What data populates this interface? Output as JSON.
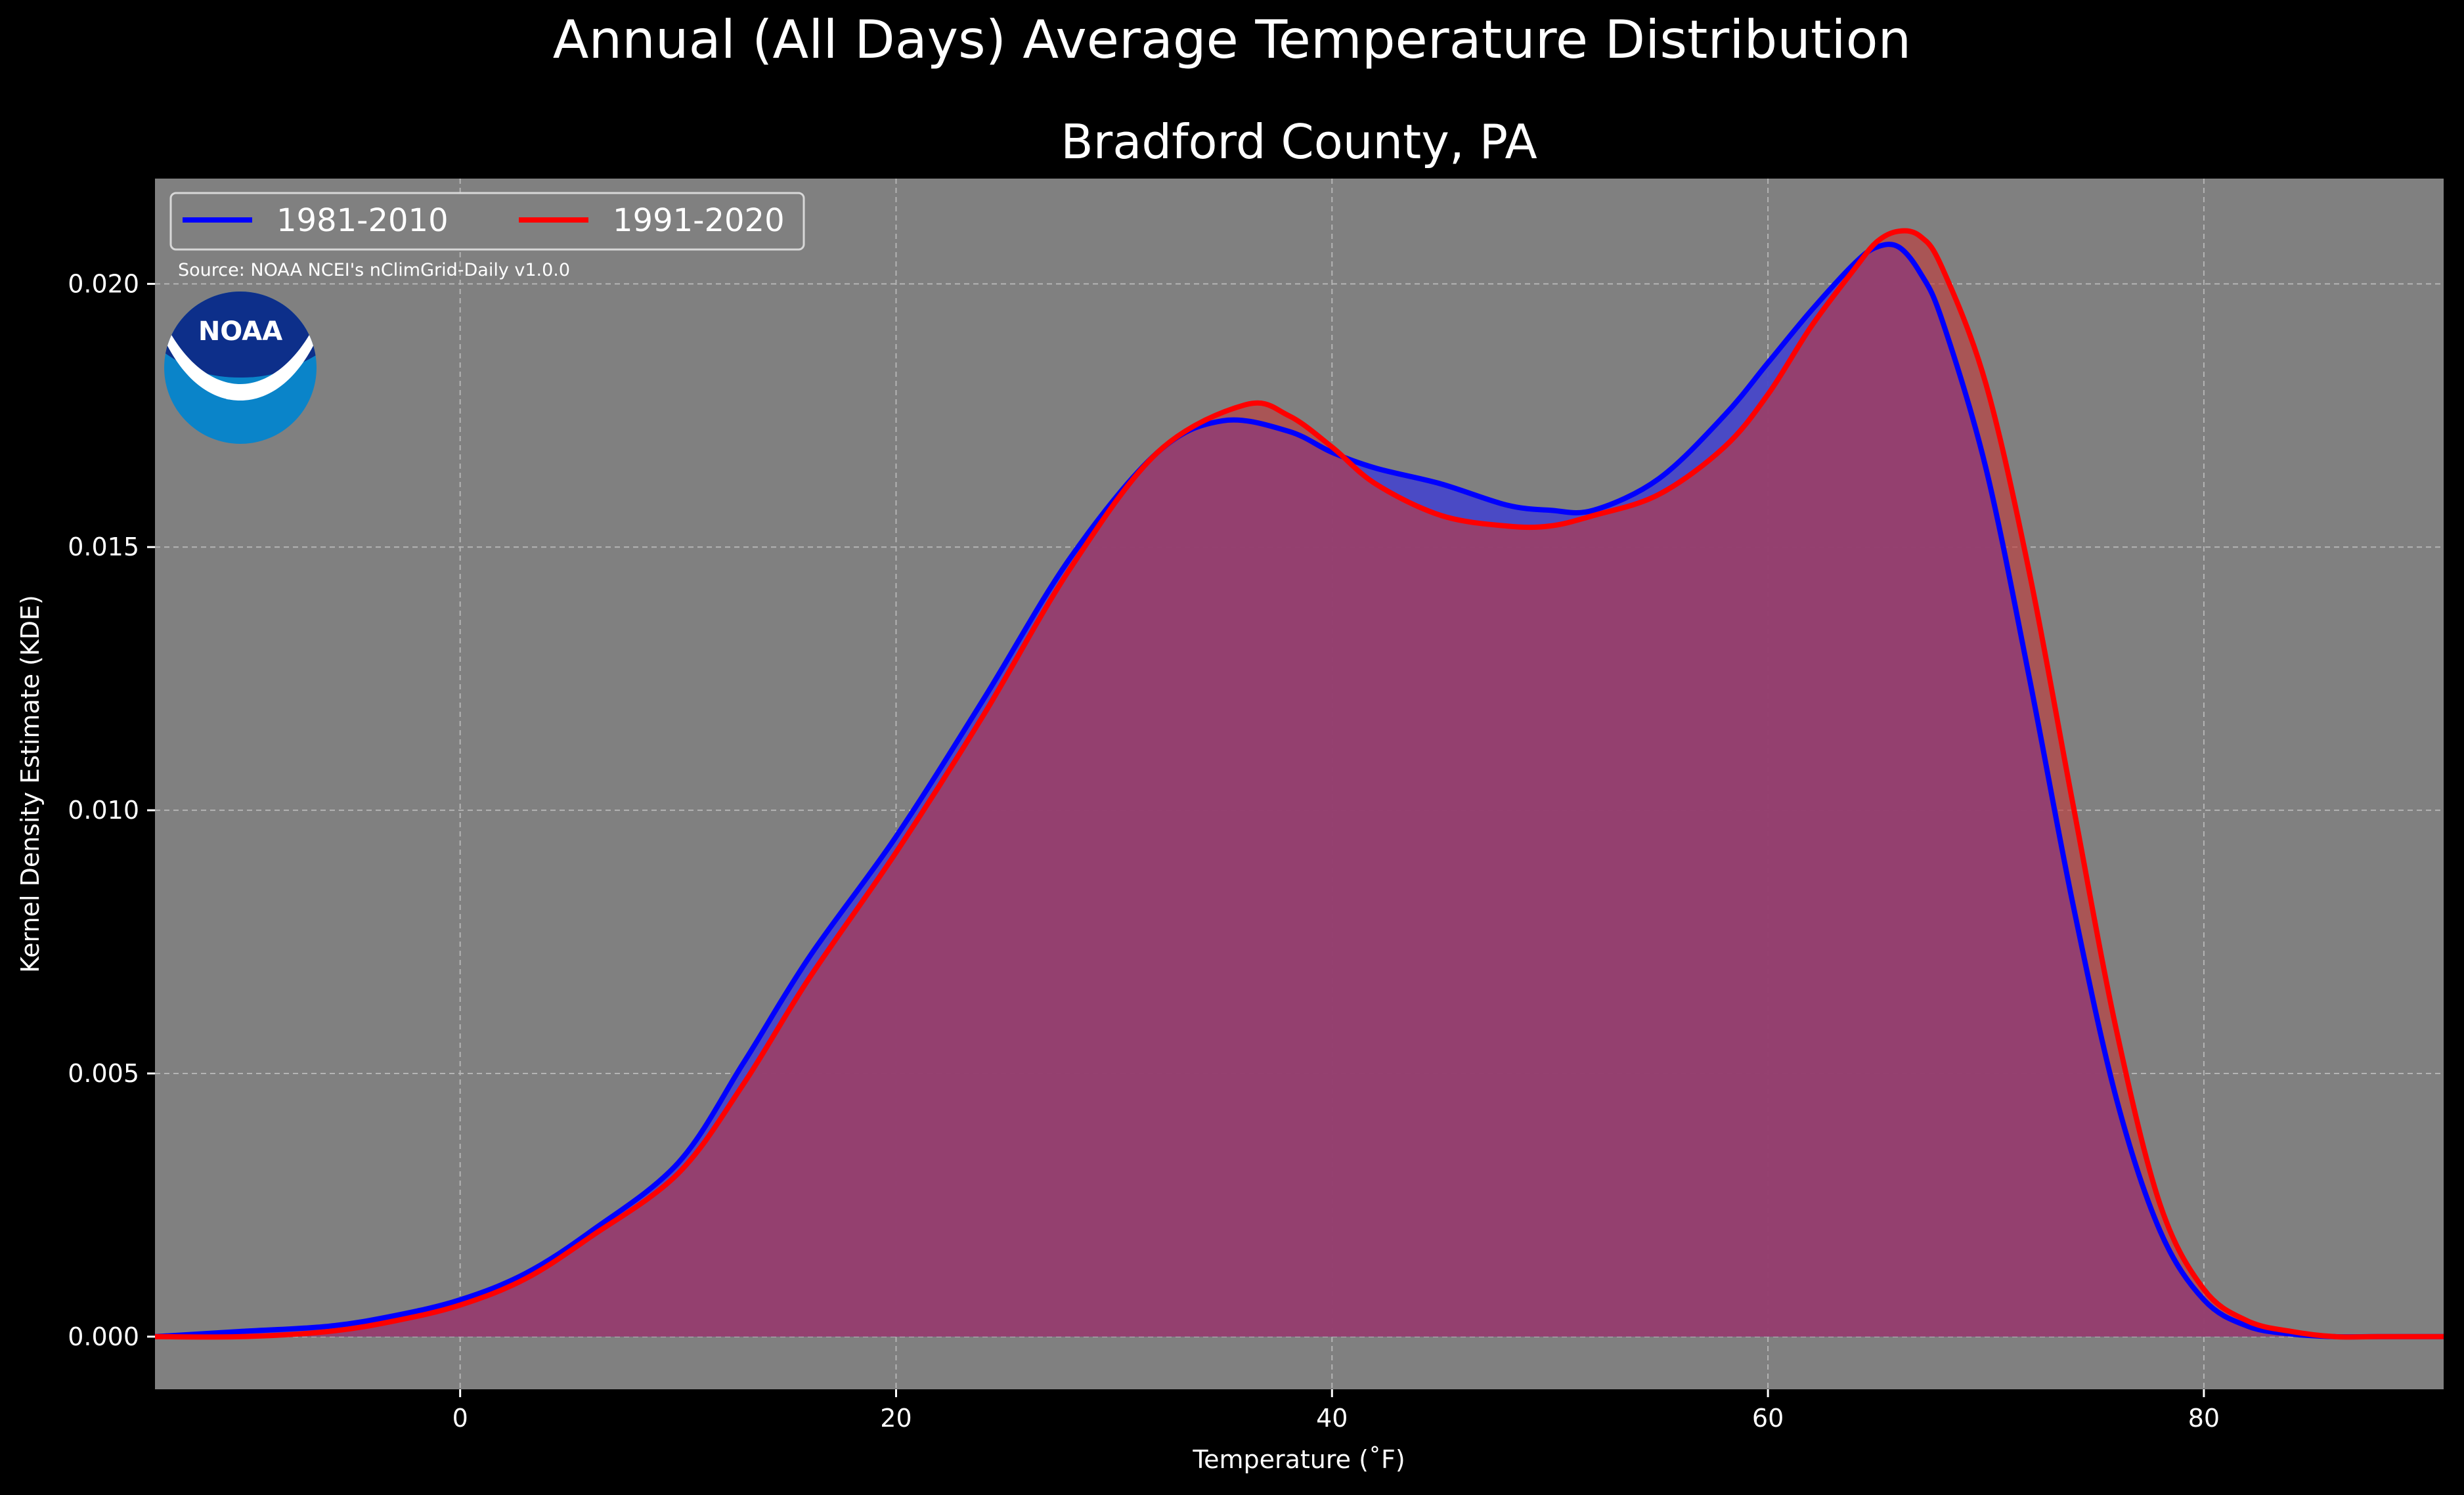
{
  "chart_data": {
    "type": "area",
    "suptitle": "Annual (All Days) Average Temperature Distribution",
    "title": "Bradford County, PA",
    "xlabel": "Temperature (˚F)",
    "ylabel": "Kernel Density Estimate (KDE)",
    "xlim": [
      -14,
      91
    ],
    "ylim": [
      -0.001,
      0.022
    ],
    "xticks": [
      0,
      20,
      40,
      60,
      80
    ],
    "yticks": [
      0.0,
      0.005,
      0.01,
      0.015,
      0.02
    ],
    "xtick_labels": [
      "0",
      "20",
      "40",
      "60",
      "80"
    ],
    "ytick_labels": [
      "0.000",
      "0.005",
      "0.010",
      "0.015",
      "0.020"
    ],
    "grid": true,
    "legend_position": "top-left",
    "source_note": "Source: NOAA NCEI's nClimGrid-Daily v1.0.0",
    "logo_text": "NOAA",
    "background": "#808080",
    "series": [
      {
        "name": "1981-2010",
        "color": "#0000ff",
        "fill": "#4747c8",
        "x": [
          -14,
          -10,
          -6,
          -3,
          0,
          3,
          6,
          10,
          13,
          16,
          20,
          24,
          28,
          32,
          35,
          38,
          40,
          42,
          45,
          48,
          50,
          52,
          55,
          58,
          60,
          62,
          64,
          65,
          66,
          67,
          68,
          70,
          72,
          74,
          76,
          78,
          80,
          82,
          84,
          86,
          88,
          91
        ],
        "y": [
          0.0,
          0.0001,
          0.0002,
          0.0004,
          0.0007,
          0.0012,
          0.002,
          0.0033,
          0.0052,
          0.0072,
          0.0095,
          0.0121,
          0.0148,
          0.0168,
          0.0174,
          0.0172,
          0.0168,
          0.0165,
          0.0162,
          0.0158,
          0.0157,
          0.0157,
          0.0163,
          0.0175,
          0.0185,
          0.0195,
          0.0204,
          0.0207,
          0.0207,
          0.0202,
          0.0193,
          0.0165,
          0.0125,
          0.0082,
          0.0045,
          0.002,
          0.0007,
          0.0002,
          5e-05,
          0.0,
          0.0,
          0.0
        ]
      },
      {
        "name": "1991-2020",
        "color": "#ff0000",
        "fill": "#c23a3a",
        "x": [
          -14,
          -10,
          -6,
          -3,
          0,
          3,
          6,
          10,
          13,
          16,
          20,
          24,
          28,
          32,
          36,
          38,
          40,
          42,
          45,
          48,
          50,
          52,
          55,
          58,
          60,
          62,
          64,
          65,
          66,
          67,
          68,
          70,
          72,
          74,
          76,
          78,
          80,
          82,
          84,
          86,
          88,
          91
        ],
        "y": [
          0.0,
          0.0,
          0.0001,
          0.0003,
          0.0006,
          0.0011,
          0.0019,
          0.0031,
          0.0048,
          0.0068,
          0.0092,
          0.0118,
          0.0146,
          0.0168,
          0.0177,
          0.0175,
          0.0169,
          0.0162,
          0.0156,
          0.0154,
          0.0154,
          0.0156,
          0.016,
          0.0169,
          0.0179,
          0.0192,
          0.0203,
          0.0208,
          0.021,
          0.0209,
          0.0203,
          0.0181,
          0.0145,
          0.0101,
          0.0058,
          0.0025,
          0.0009,
          0.0003,
          0.0001,
          0.0,
          0.0,
          0.0
        ]
      }
    ]
  }
}
